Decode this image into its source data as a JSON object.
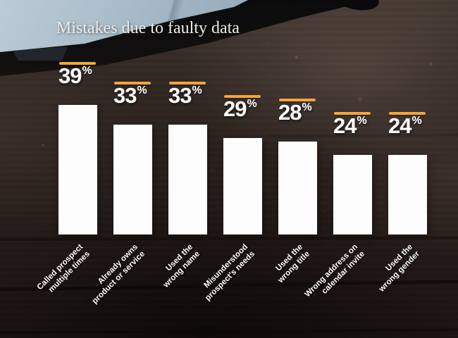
{
  "title": "Mistakes due to faulty data",
  "chart_data": {
    "type": "bar",
    "title": "Mistakes due to faulty data",
    "categories": [
      "Called prospect\nmultiple times",
      "Already owns\nproduct or service",
      "Used the\nwrong name",
      "Misunderstood\nprospect's needs",
      "Used the\nwrong title",
      "Wrong address on\ncalendar invite",
      "Used the\nwrong gender"
    ],
    "values": [
      39,
      33,
      33,
      29,
      28,
      24,
      24
    ],
    "unit": "%",
    "ylim": [
      0,
      40
    ],
    "bar_color": "#fdfdfd",
    "accent_color": "#F1A63C",
    "value_label_color": "#ffffff",
    "category_label_color": "#ffffff",
    "legend": "none",
    "grid": "off"
  },
  "decor": {
    "background": "dark-wood-desk",
    "objects": [
      "laptop-corner",
      "cable"
    ]
  }
}
